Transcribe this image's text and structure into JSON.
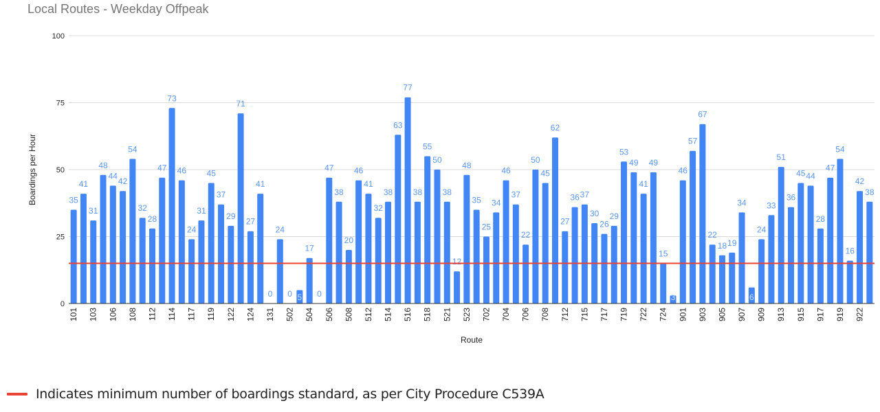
{
  "chart_data": {
    "type": "bar",
    "title": "Local Routes - Weekday Offpeak",
    "xlabel": "Route",
    "ylabel": "Boardings per Hour",
    "ylim": [
      0,
      100
    ],
    "yticks": [
      0,
      25,
      50,
      75,
      100
    ],
    "grid": true,
    "categories": [
      "101",
      "",
      "103",
      "",
      "106",
      "",
      "108",
      "",
      "112",
      "",
      "114",
      "",
      "117",
      "",
      "119",
      "",
      "122",
      "",
      "124",
      "",
      "131",
      "",
      "502",
      "",
      "504",
      "",
      "506",
      "",
      "508",
      "",
      "512",
      "",
      "514",
      "",
      "516",
      "",
      "518",
      "",
      "521",
      "",
      "523",
      "",
      "702",
      "",
      "704",
      "",
      "706",
      "",
      "708",
      "",
      "712",
      "",
      "715",
      "",
      "717",
      "",
      "719",
      "",
      "722",
      "",
      "724",
      "",
      "901",
      "",
      "903",
      "",
      "905",
      "",
      "907",
      "",
      "909",
      "",
      "913",
      "",
      "915",
      "",
      "917",
      "",
      "919",
      "",
      "922",
      ""
    ],
    "series": [
      {
        "name": "Boardings per Hour",
        "color": "#4285F4",
        "values": [
          35,
          41,
          31,
          48,
          44,
          42,
          54,
          32,
          28,
          47,
          73,
          46,
          24,
          31,
          45,
          37,
          29,
          71,
          27,
          41,
          0,
          24,
          0,
          5,
          17,
          0,
          47,
          38,
          20,
          46,
          41,
          32,
          38,
          63,
          77,
          38,
          55,
          50,
          38,
          12,
          48,
          35,
          25,
          34,
          46,
          37,
          22,
          50,
          45,
          62,
          27,
          36,
          37,
          30,
          26,
          29,
          53,
          49,
          41,
          49,
          15,
          3,
          46,
          57,
          67,
          22,
          18,
          19,
          34,
          6,
          24,
          33,
          51,
          36,
          45,
          44,
          28,
          47,
          54,
          16,
          42,
          38
        ]
      }
    ],
    "reference_line": {
      "value": 15,
      "color": "#EA4335",
      "label": "Indicates minimum number of boardings standard, as per City Procedure C539A"
    },
    "legend_position": "bottom-left"
  }
}
